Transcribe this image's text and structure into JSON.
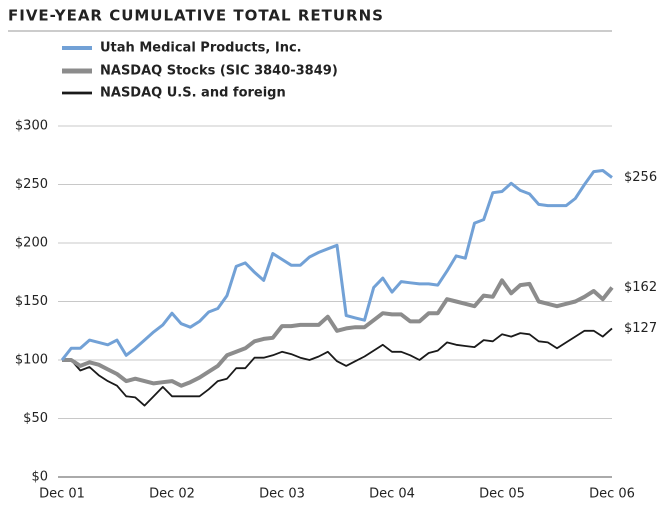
{
  "chart_data": {
    "type": "line",
    "title": "FIVE-YEAR CUMULATIVE TOTAL RETURNS",
    "categories": [
      "Dec 01",
      null,
      null,
      null,
      null,
      null,
      null,
      null,
      null,
      null,
      null,
      null,
      "Dec 02",
      null,
      null,
      null,
      null,
      null,
      null,
      null,
      null,
      null,
      null,
      null,
      "Dec 03",
      null,
      null,
      null,
      null,
      null,
      null,
      null,
      null,
      null,
      null,
      null,
      "Dec 04",
      null,
      null,
      null,
      null,
      null,
      null,
      null,
      null,
      null,
      null,
      null,
      "Dec 05",
      null,
      null,
      null,
      null,
      null,
      null,
      null,
      null,
      null,
      null,
      null,
      "Dec 06"
    ],
    "ylim": [
      0,
      300
    ],
    "yticks": [
      {
        "value": 0,
        "label": "$0"
      },
      {
        "value": 50,
        "label": "$50"
      },
      {
        "value": 100,
        "label": "$100"
      },
      {
        "value": 150,
        "label": "$150"
      },
      {
        "value": 200,
        "label": "$200"
      },
      {
        "value": 250,
        "label": "$250"
      },
      {
        "value": 300,
        "label": "$300"
      }
    ],
    "grid": true,
    "series": [
      {
        "name": "Utah Medical Products, Inc.",
        "color": "#72a1d6",
        "width": 3,
        "end_label": "$256",
        "values": [
          100,
          110,
          110,
          117,
          115,
          113,
          117,
          104,
          110,
          117,
          124,
          130,
          140,
          131,
          128,
          133,
          141,
          144,
          155,
          180,
          183,
          175,
          168,
          191,
          186,
          181,
          181,
          188,
          192,
          195,
          198,
          138,
          136,
          134,
          162,
          170,
          158,
          167,
          166,
          165,
          165,
          164,
          176,
          189,
          187,
          217,
          220,
          243,
          244,
          251,
          245,
          242,
          233,
          232,
          232,
          232,
          238,
          250,
          261,
          262,
          256
        ]
      },
      {
        "name": "NASDAQ Stocks (SIC 3840-3849)",
        "color": "#8c8c8c",
        "width": 4,
        "end_label": "$162",
        "values": [
          100,
          100,
          95,
          98,
          96,
          92,
          88,
          82,
          84,
          82,
          80,
          81,
          82,
          78,
          81,
          85,
          90,
          95,
          104,
          107,
          110,
          116,
          118,
          119,
          129,
          129,
          130,
          130,
          130,
          137,
          125,
          127,
          128,
          128,
          134,
          140,
          139,
          139,
          133,
          133,
          140,
          140,
          152,
          150,
          148,
          146,
          155,
          154,
          168,
          157,
          164,
          165,
          150,
          148,
          146,
          148,
          150,
          154,
          159,
          152,
          162
        ]
      },
      {
        "name": "NASDAQ U.S. and foreign",
        "color": "#1a1a1a",
        "width": 1.8,
        "end_label": "$127",
        "values": [
          100,
          100,
          91,
          94,
          87,
          82,
          78,
          69,
          68,
          61,
          69,
          77,
          69,
          69,
          69,
          69,
          75,
          82,
          84,
          93,
          93,
          102,
          102,
          104,
          107,
          105,
          102,
          100,
          103,
          107,
          99,
          95,
          99,
          103,
          108,
          113,
          107,
          107,
          104,
          100,
          106,
          108,
          115,
          113,
          112,
          111,
          117,
          116,
          122,
          120,
          123,
          122,
          116,
          115,
          110,
          115,
          120,
          125,
          125,
          120,
          127
        ]
      }
    ]
  }
}
